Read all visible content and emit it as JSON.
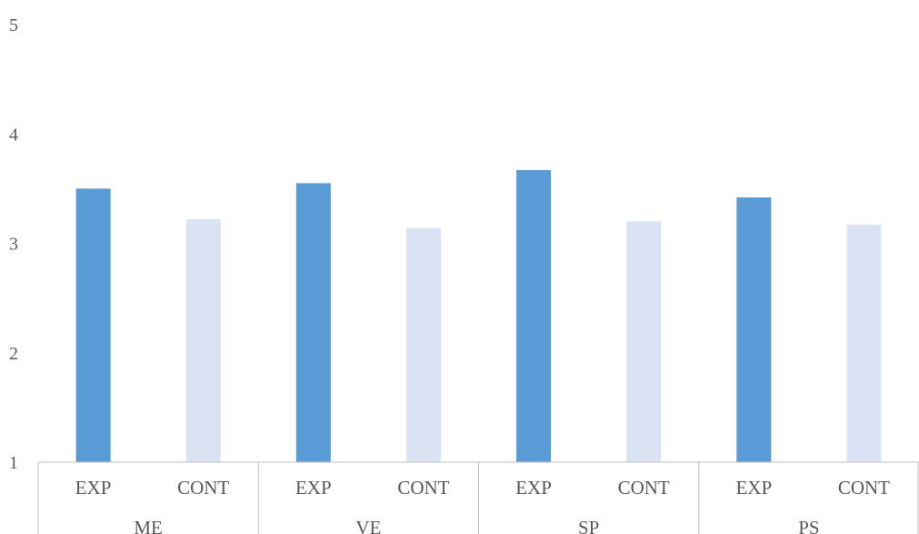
{
  "chart_data": {
    "type": "bar",
    "groups": [
      {
        "label": "ME",
        "bars": [
          {
            "category": "EXP",
            "value": 3.5
          },
          {
            "category": "CONT",
            "value": 3.22
          }
        ]
      },
      {
        "label": "VE",
        "bars": [
          {
            "category": "EXP",
            "value": 3.55
          },
          {
            "category": "CONT",
            "value": 3.14
          }
        ]
      },
      {
        "label": "SP",
        "bars": [
          {
            "category": "EXP",
            "value": 3.67
          },
          {
            "category": "CONT",
            "value": 3.2
          }
        ]
      },
      {
        "label": "PS",
        "bars": [
          {
            "category": "EXP",
            "value": 3.42
          },
          {
            "category": "CONT",
            "value": 3.17
          }
        ]
      }
    ],
    "colors": {
      "EXP": "#5b9bd5",
      "CONT": "#dae3f3"
    },
    "ylim": [
      1,
      5
    ],
    "yticks": [
      "1",
      "2",
      "3",
      "4",
      "5"
    ],
    "grid": false,
    "title": "",
    "xlabel": "",
    "ylabel": ""
  }
}
